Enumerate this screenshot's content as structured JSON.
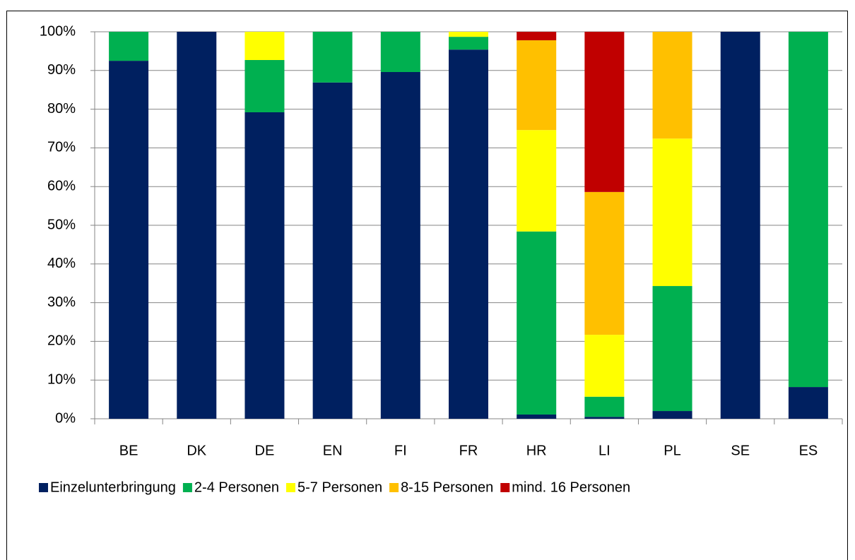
{
  "chart_data": {
    "type": "stacked_bar",
    "categories": [
      "BE",
      "DK",
      "DE",
      "EN",
      "FI",
      "FR",
      "HR",
      "LI",
      "PL",
      "SE",
      "ES"
    ],
    "series": [
      {
        "name": "Einzelunterbringung",
        "color": "#002060",
        "values": [
          92.5,
          100,
          79.2,
          86.9,
          89.6,
          95.4,
          1.1,
          0.5,
          2.0,
          100,
          8.2
        ]
      },
      {
        "name": "2-4 Personen",
        "color": "#00b050",
        "values": [
          7.5,
          0,
          13.5,
          13.1,
          10.4,
          3.3,
          47.3,
          5.2,
          32.3,
          0,
          91.8
        ]
      },
      {
        "name": "5-7 Personen",
        "color": "#ffff00",
        "values": [
          0,
          0,
          7.3,
          0,
          0,
          1.3,
          26.2,
          16.0,
          38.1,
          0,
          0
        ]
      },
      {
        "name": "8-15 Personen",
        "color": "#ffc000",
        "values": [
          0,
          0,
          0,
          0,
          0,
          0,
          23.2,
          36.9,
          27.6,
          0,
          0
        ]
      },
      {
        "name": "mind. 16 Personen",
        "color": "#c00000",
        "values": [
          0,
          0,
          0,
          0,
          0,
          0,
          2.2,
          41.4,
          0,
          0,
          0
        ]
      }
    ],
    "ylim": [
      0,
      100
    ],
    "yticks": [
      {
        "value": 0,
        "label": "0%"
      },
      {
        "value": 10,
        "label": "10%"
      },
      {
        "value": 20,
        "label": "20%"
      },
      {
        "value": 30,
        "label": "30%"
      },
      {
        "value": 40,
        "label": "40%"
      },
      {
        "value": 50,
        "label": "50%"
      },
      {
        "value": 60,
        "label": "60%"
      },
      {
        "value": 70,
        "label": "70%"
      },
      {
        "value": 80,
        "label": "80%"
      },
      {
        "value": 90,
        "label": "90%"
      },
      {
        "value": 100,
        "label": "100%"
      }
    ],
    "grid": true,
    "legend": "bottom"
  }
}
